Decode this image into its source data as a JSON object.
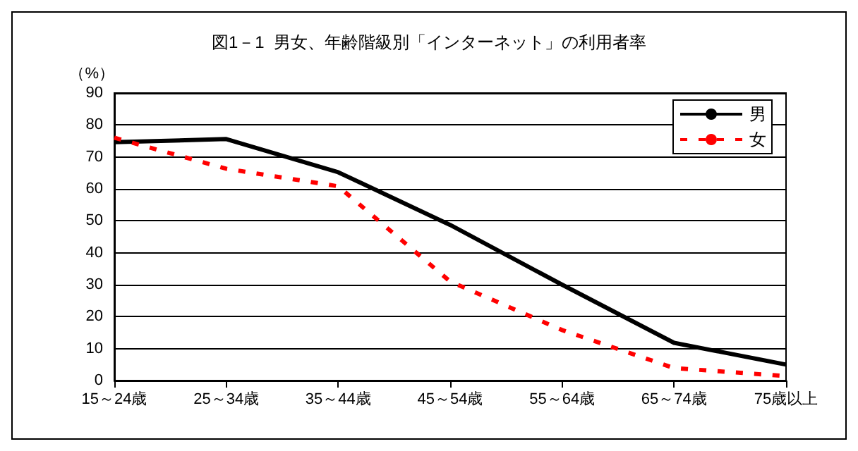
{
  "chart_data": {
    "type": "line",
    "title": "図1－1  男女、年齢階級別「インターネット」の利用者率",
    "ylabel": "（%）",
    "categories": [
      "15～24歳",
      "25～34歳",
      "35～44歳",
      "45～54歳",
      "55～64歳",
      "65～74歳",
      "75歳以上"
    ],
    "series": [
      {
        "name": "男",
        "color": "#000000",
        "line_style": "solid",
        "values": [
          74.6,
          75.6,
          65.2,
          48.7,
          30.0,
          11.8,
          5.0
        ]
      },
      {
        "name": "女",
        "color": "#ff0000",
        "line_style": "dashed",
        "values": [
          76.0,
          66.3,
          60.8,
          31.0,
          15.8,
          3.9,
          1.4
        ]
      }
    ],
    "ylim": [
      0,
      90
    ],
    "yticks": [
      0,
      10,
      20,
      30,
      40,
      50,
      60,
      70,
      80,
      90
    ],
    "grid": "y",
    "legend": "top right",
    "marker": "none"
  }
}
